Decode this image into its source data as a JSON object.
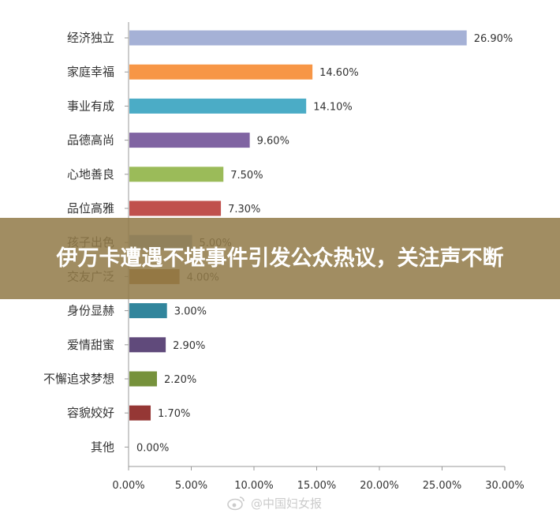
{
  "banner": {
    "headline": "伊万卡遭遇不堪事件引发公众热议，关注声不断"
  },
  "watermark": {
    "text": "@中国妇女报",
    "icon": "weibo-icon"
  },
  "chart_data": {
    "type": "bar",
    "orientation": "horizontal",
    "title": "",
    "xlabel": "",
    "ylabel": "",
    "xlim": [
      0,
      30
    ],
    "x_ticks": [
      "0.00%",
      "5.00%",
      "10.00%",
      "15.00%",
      "20.00%",
      "25.00%",
      "30.00%"
    ],
    "categories": [
      "经济独立",
      "家庭幸福",
      "事业有成",
      "品德高尚",
      "心地善良",
      "品位高雅",
      "孩子出色",
      "交友广泛",
      "身份显赫",
      "爱情甜蜜",
      "不懈追求梦想",
      "容貌姣好",
      "其他"
    ],
    "values": [
      26.9,
      14.6,
      14.1,
      9.6,
      7.5,
      7.3,
      5.0,
      4.0,
      3.0,
      2.9,
      2.2,
      1.7,
      0.0
    ],
    "value_labels": [
      "26.90%",
      "14.60%",
      "14.10%",
      "9.60%",
      "7.50%",
      "7.30%",
      "5.00%",
      "4.00%",
      "3.00%",
      "2.90%",
      "2.20%",
      "1.70%",
      "0.00%"
    ],
    "colors": [
      "#a5b1d6",
      "#f79646",
      "#4bacc6",
      "#8064a2",
      "#9bbb59",
      "#c0504d",
      "#8ea7cf",
      "#a0682a",
      "#31859c",
      "#604a7b",
      "#76923c",
      "#953735",
      "#bbbbbb"
    ],
    "grid": false,
    "legend": "none"
  }
}
